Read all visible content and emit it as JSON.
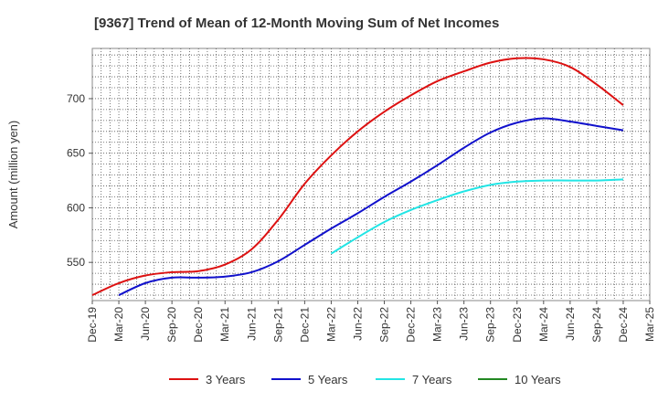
{
  "chart_data": {
    "type": "line",
    "title": "[9367]  Trend of Mean of 12-Month Moving Sum of Net Incomes",
    "ylabel": "Amount (million yen)",
    "xlabel": "",
    "x_ticks": [
      "Dec-19",
      "Mar-20",
      "Jun-20",
      "Sep-20",
      "Dec-20",
      "Mar-21",
      "Jun-21",
      "Sep-21",
      "Dec-21",
      "Mar-22",
      "Jun-22",
      "Sep-22",
      "Dec-22",
      "Mar-23",
      "Jun-23",
      "Sep-23",
      "Dec-23",
      "Mar-24",
      "Jun-24",
      "Sep-24",
      "Dec-24",
      "Mar-25"
    ],
    "y_ticks": [
      550,
      600,
      650,
      700
    ],
    "ylim": [
      515,
      746
    ],
    "grid": true,
    "legend_position": "bottom",
    "series": [
      {
        "name": "3 Years",
        "color": "#dd1111",
        "points": [
          [
            "Dec-19",
            520
          ],
          [
            "Mar-20",
            531
          ],
          [
            "Jun-20",
            538
          ],
          [
            "Sep-20",
            541
          ],
          [
            "Dec-20",
            542
          ],
          [
            "Mar-21",
            548
          ],
          [
            "Jun-21",
            562
          ],
          [
            "Sep-21",
            589
          ],
          [
            "Dec-21",
            622
          ],
          [
            "Mar-22",
            648
          ],
          [
            "Jun-22",
            670
          ],
          [
            "Sep-22",
            688
          ],
          [
            "Dec-22",
            703
          ],
          [
            "Mar-23",
            716
          ],
          [
            "Jun-23",
            725
          ],
          [
            "Sep-23",
            733
          ],
          [
            "Dec-23",
            737
          ],
          [
            "Mar-24",
            736
          ],
          [
            "Jun-24",
            729
          ],
          [
            "Sep-24",
            713
          ],
          [
            "Dec-24",
            694
          ]
        ]
      },
      {
        "name": "5 Years",
        "color": "#1111cc",
        "points": [
          [
            "Mar-20",
            520
          ],
          [
            "Jun-20",
            531
          ],
          [
            "Sep-20",
            536
          ],
          [
            "Dec-20",
            536
          ],
          [
            "Mar-21",
            537
          ],
          [
            "Jun-21",
            541
          ],
          [
            "Sep-21",
            551
          ],
          [
            "Dec-21",
            566
          ],
          [
            "Mar-22",
            581
          ],
          [
            "Jun-22",
            595
          ],
          [
            "Sep-22",
            610
          ],
          [
            "Dec-22",
            624
          ],
          [
            "Mar-23",
            639
          ],
          [
            "Jun-23",
            655
          ],
          [
            "Sep-23",
            669
          ],
          [
            "Dec-23",
            678
          ],
          [
            "Mar-24",
            682
          ],
          [
            "Jun-24",
            679
          ],
          [
            "Sep-24",
            675
          ],
          [
            "Dec-24",
            671
          ]
        ]
      },
      {
        "name": "7 Years",
        "color": "#22e5e5",
        "points": [
          [
            "Mar-22",
            558
          ],
          [
            "Jun-22",
            573
          ],
          [
            "Sep-22",
            587
          ],
          [
            "Dec-22",
            598
          ],
          [
            "Mar-23",
            607
          ],
          [
            "Jun-23",
            615
          ],
          [
            "Sep-23",
            621
          ],
          [
            "Dec-23",
            624
          ],
          [
            "Mar-24",
            625
          ],
          [
            "Jun-24",
            625
          ],
          [
            "Sep-24",
            625
          ],
          [
            "Dec-24",
            626
          ]
        ]
      },
      {
        "name": "10 Years",
        "color": "#228822",
        "points": []
      }
    ]
  }
}
